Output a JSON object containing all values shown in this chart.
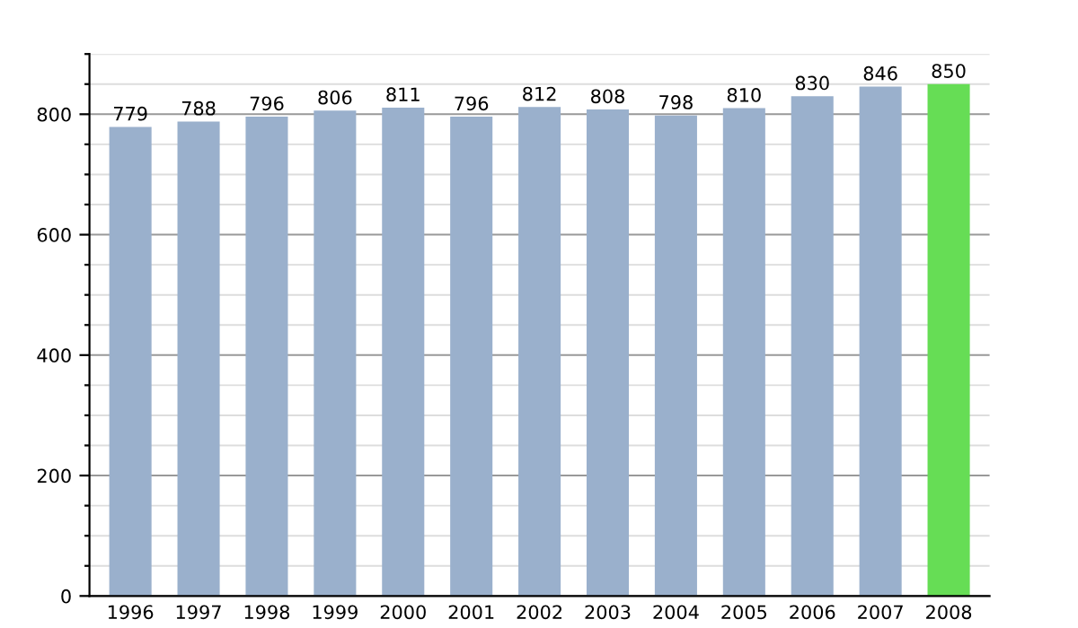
{
  "chart_data": {
    "type": "bar",
    "categories": [
      "1996",
      "1997",
      "1998",
      "1999",
      "2000",
      "2001",
      "2002",
      "2003",
      "2004",
      "2005",
      "2006",
      "2007",
      "2008"
    ],
    "values": [
      779,
      788,
      796,
      806,
      811,
      796,
      812,
      808,
      798,
      810,
      830,
      846,
      850
    ],
    "colors": [
      "#9ab0cc",
      "#9ab0cc",
      "#9ab0cc",
      "#9ab0cc",
      "#9ab0cc",
      "#9ab0cc",
      "#9ab0cc",
      "#9ab0cc",
      "#9ab0cc",
      "#9ab0cc",
      "#9ab0cc",
      "#9ab0cc",
      "#66dd55"
    ],
    "ylim": [
      0,
      900
    ],
    "yticks": [
      0,
      {
        "value": 50,
        "label": null
      },
      {
        "value": 100,
        "label": null
      },
      {
        "value": 150,
        "label": null
      },
      200,
      {
        "value": 250,
        "label": null
      },
      {
        "value": 300,
        "label": null
      },
      {
        "value": 350,
        "label": null
      },
      400,
      {
        "value": 450,
        "label": null
      },
      {
        "value": 500,
        "label": null
      },
      {
        "value": 550,
        "label": null
      },
      600,
      {
        "value": 650,
        "label": null
      },
      {
        "value": 700,
        "label": null
      },
      {
        "value": 750,
        "label": null
      },
      800,
      {
        "value": 850,
        "label": null
      },
      {
        "value": 900,
        "label": null
      }
    ],
    "grid": "y",
    "data_labels": true,
    "legend": false
  }
}
